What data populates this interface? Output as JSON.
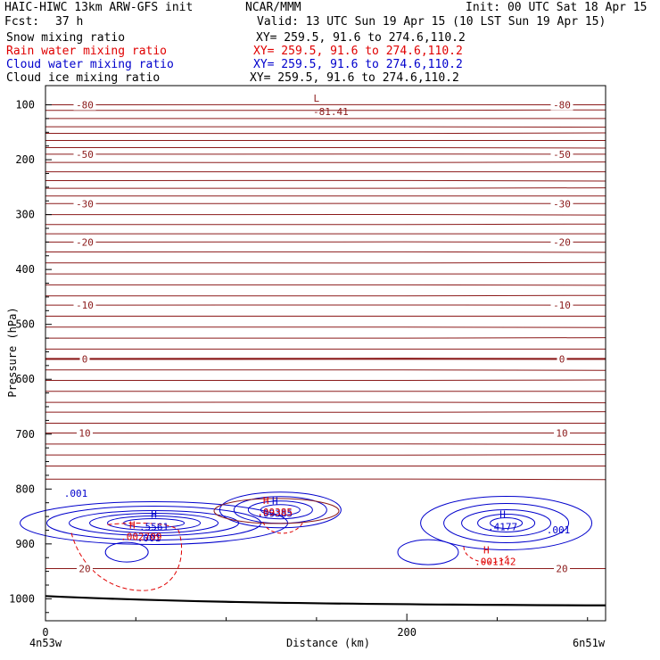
{
  "header": {
    "model": "HAIC-HIWC 13km ARW-GFS init",
    "org": "NCAR/MMM",
    "init": "Init: 00 UTC Sat 18 Apr 15",
    "fcst_label": "Fcst:",
    "fcst_value": "37 h",
    "valid": "Valid: 13 UTC Sun 19 Apr 15 (10 LST Sun 19 Apr 15)"
  },
  "fields": [
    {
      "name": "Snow mixing ratio",
      "xy": "XY= 259.5, 91.6 to 274.6,110.2",
      "color": "#000000"
    },
    {
      "name": "Rain water mixing ratio",
      "xy": "XY= 259.5, 91.6 to 274.6,110.2",
      "color": "#e00000"
    },
    {
      "name": "Cloud water mixing ratio",
      "xy": "XY= 259.5, 91.6 to 274.6,110.2",
      "color": "#0000cc"
    },
    {
      "name": "Cloud ice mixing ratio",
      "xy": "XY= 259.5, 91.6 to 274.6,110.2",
      "color": "#000000"
    }
  ],
  "colors": {
    "isotherm": "#8b1a1a",
    "rain": "#e00000",
    "cloud": "#0000cc",
    "terrain": "#000000"
  },
  "chart_data": {
    "type": "contour",
    "ylabel": "Pressure (hPa)",
    "xlabel": "Distance (km)",
    "y_ticks": [
      100,
      200,
      300,
      400,
      500,
      600,
      700,
      800,
      900,
      1000
    ],
    "y_range": [
      65,
      1040
    ],
    "x_ticks": [
      0,
      200
    ],
    "x_range": [
      0,
      310
    ],
    "x_end_left": "4n53w",
    "x_end_right": "6n51w",
    "isotherms": [
      {
        "p": 100,
        "label": "-80"
      },
      {
        "p": 190,
        "label": "-50"
      },
      {
        "p": 280,
        "label": "-30"
      },
      {
        "p": 350,
        "label": "-20"
      },
      {
        "p": 465,
        "label": "-10"
      },
      {
        "p": 563,
        "label": "0",
        "bold": true
      },
      {
        "p": 698,
        "label": "10"
      },
      {
        "p": 945,
        "label": "20"
      }
    ],
    "isotherm_min_label": {
      "letter": "L",
      "value": "-81.41",
      "x": 150,
      "p": 88
    },
    "cloud_water_maxima": [
      {
        "letter": "H",
        "value": ".5561",
        "x": 60,
        "p": 862
      },
      {
        "letter": "H",
        "value": ".09385",
        "x": 127,
        "p": 838
      },
      {
        "letter": "H",
        "value": ".4177",
        "x": 253,
        "p": 862
      }
    ],
    "cloud_water_labels": [
      ".001",
      ".001",
      ".001"
    ],
    "rain_maxima": [
      {
        "letter": "H",
        "value": ".002709",
        "x": 50,
        "p": 885
      },
      {
        "letter": "H",
        "value": ".09385",
        "x": 124,
        "p": 840
      },
      {
        "letter": "H",
        "value": ".001142",
        "x": 246,
        "p": 930
      }
    ]
  }
}
